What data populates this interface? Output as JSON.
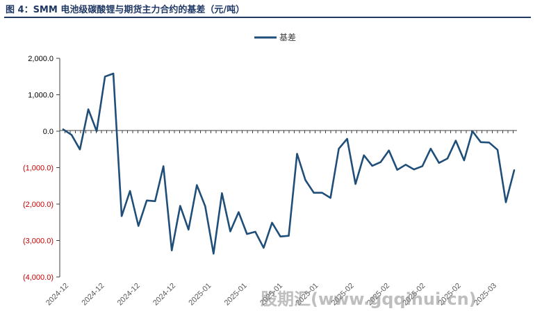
{
  "header": {
    "title": "图 4：SMM 电池级碳酸锂与期货主力合约的基差（元/吨）"
  },
  "watermark": "股期汇(www.gqqihui.cn)",
  "colors": {
    "title": "#1f3864",
    "series": "#1f4e79",
    "negative_label": "#c00000",
    "positive_label": "#000000"
  },
  "chart_data": {
    "type": "line",
    "legend_position": "top-center",
    "grid": false,
    "ylim": [
      -4000,
      2000
    ],
    "yticks": [
      2000,
      1000,
      0,
      -1000,
      -2000,
      -3000,
      -4000
    ],
    "ytick_labels": [
      "2,000.0",
      "1,000.0",
      "0.0",
      "(1,000.0)",
      "(2,000.0)",
      "(3,000.0)",
      "(4,000.0)"
    ],
    "xtick_labels": [
      "2024-12",
      "2024-12",
      "2024-12",
      "2024-12",
      "2025-01",
      "2025-01",
      "2025-01",
      "2025-01",
      "2025-02",
      "2025-02",
      "2025-02",
      "2025-02",
      "2025-03"
    ],
    "series": [
      {
        "name": "基差",
        "values": [
          50,
          -100,
          -500,
          600,
          0,
          1500,
          1580,
          -2330,
          -1640,
          -2600,
          -1900,
          -1920,
          -960,
          -3270,
          -2050,
          -2700,
          -1480,
          -2060,
          -3360,
          -1700,
          -2750,
          -2220,
          -2820,
          -2760,
          -3200,
          -2510,
          -2890,
          -2870,
          -620,
          -1340,
          -1690,
          -1690,
          -1830,
          -480,
          -210,
          -1450,
          -660,
          -950,
          -850,
          -530,
          -1060,
          -920,
          -1050,
          -960,
          -480,
          -870,
          -750,
          -260,
          -800,
          0,
          -300,
          -310,
          -510,
          -1950,
          -1070
        ]
      }
    ]
  }
}
